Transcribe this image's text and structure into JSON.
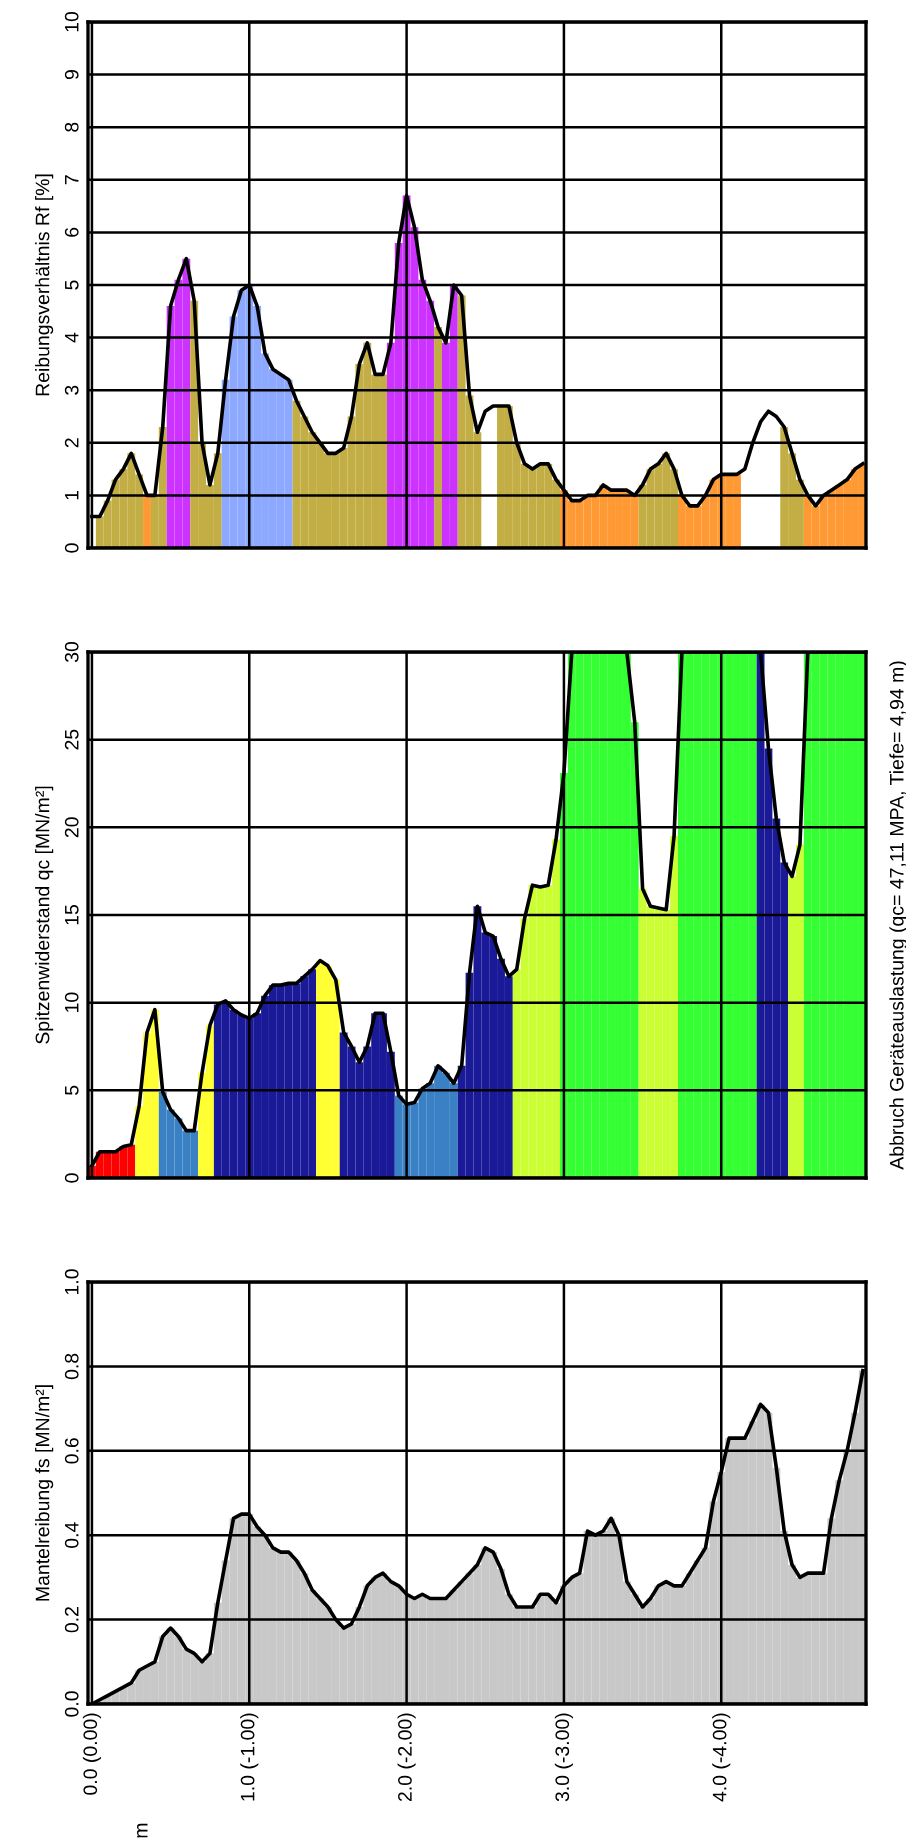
{
  "chart_data": [
    {
      "type": "bar",
      "ylabel": "Reibungsverhältnis Rf [%]",
      "ylim": [
        0,
        10
      ],
      "yticks": [
        0,
        1,
        2,
        3,
        4,
        5,
        6,
        7,
        8,
        9,
        10
      ],
      "grid": true,
      "tick_labels": "y",
      "categories": [
        null,
        null,
        null,
        null,
        null,
        null,
        null,
        null,
        null,
        null,
        null,
        null,
        null,
        null,
        null,
        null,
        null,
        null,
        null,
        null,
        null,
        null,
        null,
        null,
        null,
        null,
        null,
        null,
        null,
        null,
        null,
        null,
        null,
        null,
        null,
        null,
        null,
        null,
        null,
        null,
        null,
        null,
        null,
        null,
        null,
        null,
        null,
        null,
        null,
        null,
        null,
        null,
        null,
        null,
        null,
        null,
        null,
        null,
        null,
        null,
        null,
        null,
        null,
        null,
        null,
        null,
        null,
        null,
        null,
        null,
        null,
        null,
        null,
        null,
        null,
        null,
        null,
        null,
        null,
        null,
        null,
        null,
        null,
        null,
        null,
        null,
        null,
        null,
        null,
        null,
        null,
        null,
        null,
        null,
        null,
        null,
        null,
        null,
        null
      ],
      "series": [
        {
          "values": [
            null,
            0.6,
            0.9,
            1.3,
            1.5,
            1.8,
            1.4,
            1.0,
            1.0,
            2.3,
            4.6,
            5.1,
            5.5,
            4.7,
            2.0,
            1.2,
            1.8,
            3.2,
            4.4,
            4.9,
            5.0,
            4.6,
            3.7,
            3.4,
            3.3,
            3.2,
            2.8,
            2.5,
            2.2,
            2.0,
            1.8,
            1.8,
            1.9,
            2.5,
            3.5,
            3.9,
            3.3,
            3.3,
            3.9,
            5.8,
            6.7,
            6.1,
            5.1,
            4.7,
            4.2,
            3.9,
            5.0,
            4.8,
            2.9,
            2.2,
            null,
            null,
            2.7,
            2.7,
            2.0,
            1.6,
            1.5,
            1.6,
            1.6,
            1.3,
            1.1,
            0.9,
            0.9,
            1.0,
            1.0,
            1.2,
            1.1,
            1.1,
            1.1,
            1.0,
            1.2,
            1.5,
            1.6,
            1.8,
            1.5,
            1.0,
            0.8,
            0.8,
            1.0,
            1.3,
            1.4,
            1.4,
            1.4,
            null,
            null,
            null,
            null,
            null,
            2.3,
            1.8,
            1.3,
            1.0,
            0.8,
            1.0,
            1.1,
            1.2,
            1.3,
            1.5,
            1.6
          ],
          "colors": [
            "#ffffff",
            "#c2ae45",
            "#c2ae45",
            "#c2ae45",
            "#c2ae45",
            "#c2ae45",
            "#c2ae45",
            "#ff9933",
            "#c2ae45",
            "#c2ae45",
            "#cc33ff",
            "#cc33ff",
            "#cc33ff",
            "#c2ae45",
            "#c2ae45",
            "#c2ae45",
            "#c2ae45",
            "#8ca8ff",
            "#8ca8ff",
            "#8ca8ff",
            "#8ca8ff",
            "#8ca8ff",
            "#8ca8ff",
            "#8ca8ff",
            "#8ca8ff",
            "#8ca8ff",
            "#c2ae45",
            "#c2ae45",
            "#c2ae45",
            "#c2ae45",
            "#c2ae45",
            "#c2ae45",
            "#c2ae45",
            "#c2ae45",
            "#c2ae45",
            "#c2ae45",
            "#c2ae45",
            "#c2ae45",
            "#cc33ff",
            "#cc33ff",
            "#cc33ff",
            "#cc33ff",
            "#cc33ff",
            "#cc33ff",
            "#c2ae45",
            "#cc33ff",
            "#cc33ff",
            "#c2ae45",
            "#c2ae45",
            "#c2ae45",
            "#ffffff",
            "#ffffff",
            "#c2ae45",
            "#c2ae45",
            "#c2ae45",
            "#c2ae45",
            "#c2ae45",
            "#c2ae45",
            "#c2ae45",
            "#c2ae45",
            "#ff9933",
            "#ff9933",
            "#ff9933",
            "#ff9933",
            "#ff9933",
            "#ff9933",
            "#ff9933",
            "#ff9933",
            "#ff9933",
            "#ff9933",
            "#c2ae45",
            "#c2ae45",
            "#c2ae45",
            "#c2ae45",
            "#c2ae45",
            "#ff9933",
            "#ff9933",
            "#ff9933",
            "#ff9933",
            "#ff9933",
            "#ff9933",
            "#ff9933",
            "#ff9933",
            "#ffffff",
            "#ffffff",
            "#ffffff",
            "#ffffff",
            "#ffffff",
            "#c2ae45",
            "#c2ae45",
            "#c2ae45",
            "#ff9933",
            "#ff9933",
            "#ff9933",
            "#ff9933",
            "#ff9933",
            "#ff9933",
            "#ff9933",
            "#ff9933"
          ]
        },
        {
          "type": "line",
          "color": "#000000",
          "values": [
            0.6,
            0.6,
            0.9,
            1.3,
            1.5,
            1.8,
            1.4,
            1.0,
            1.0,
            2.3,
            4.6,
            5.1,
            5.5,
            4.7,
            2.0,
            1.2,
            1.8,
            3.2,
            4.4,
            4.9,
            5.0,
            4.6,
            3.7,
            3.4,
            3.3,
            3.2,
            2.8,
            2.5,
            2.2,
            2.0,
            1.8,
            1.8,
            1.9,
            2.5,
            3.5,
            3.9,
            3.3,
            3.3,
            3.9,
            5.8,
            6.7,
            6.1,
            5.1,
            4.7,
            4.2,
            3.9,
            5.0,
            4.8,
            2.9,
            2.2,
            2.6,
            2.7,
            2.7,
            2.7,
            2.0,
            1.6,
            1.5,
            1.6,
            1.6,
            1.3,
            1.1,
            0.9,
            0.9,
            1.0,
            1.0,
            1.2,
            1.1,
            1.1,
            1.1,
            1.0,
            1.2,
            1.5,
            1.6,
            1.8,
            1.5,
            1.0,
            0.8,
            0.8,
            1.0,
            1.3,
            1.4,
            1.4,
            1.4,
            1.5,
            2.0,
            2.4,
            2.6,
            2.5,
            2.3,
            1.8,
            1.3,
            1.0,
            0.8,
            1.0,
            1.1,
            1.2,
            1.3,
            1.5,
            1.6
          ]
        }
      ]
    },
    {
      "type": "bar",
      "ylabel": "Spitzenwiderstand qc [MN/m²]",
      "ylim": [
        0,
        30
      ],
      "yticks": [
        0,
        5,
        10,
        15,
        20,
        25,
        30
      ],
      "grid": true,
      "tick_labels": "y",
      "annotations": [
        "Abbruch Geräteauslastung (qc= 47,11 MPA, Tiefe= 4,94 m)"
      ],
      "categories": [
        null,
        null,
        null,
        null,
        null,
        null,
        null,
        null,
        null,
        null,
        null,
        null,
        null,
        null,
        null,
        null,
        null,
        null,
        null,
        null,
        null,
        null,
        null,
        null,
        null,
        null,
        null,
        null,
        null,
        null,
        null,
        null,
        null,
        null,
        null,
        null,
        null,
        null,
        null,
        null,
        null,
        null,
        null,
        null,
        null,
        null,
        null,
        null,
        null,
        null,
        null,
        null,
        null,
        null,
        null,
        null,
        null,
        null,
        null,
        null,
        null,
        null,
        null,
        null,
        null,
        null,
        null,
        null,
        null,
        null,
        null,
        null,
        null,
        null,
        null,
        null,
        null,
        null,
        null,
        null,
        null,
        null,
        null,
        null,
        null,
        null,
        null,
        null,
        null,
        null,
        null,
        null,
        null,
        null,
        null,
        null,
        null,
        null,
        null
      ],
      "series": [
        {
          "values": [
            0.7,
            1.5,
            1.5,
            1.5,
            1.8,
            1.9,
            4.1,
            8.3,
            9.6,
            4.9,
            3.9,
            3.4,
            2.7,
            2.7,
            6.0,
            8.7,
            9.9,
            10.1,
            9.6,
            9.3,
            9.1,
            9.4,
            10.4,
            11.0,
            11.0,
            11.1,
            11.1,
            11.5,
            11.9,
            12.4,
            12.1,
            11.3,
            8.3,
            7.5,
            6.6,
            7.5,
            9.4,
            9.4,
            7.2,
            4.7,
            4.2,
            4.3,
            5.1,
            5.4,
            6.4,
            6.0,
            5.4,
            6.4,
            11.7,
            15.5,
            14.0,
            13.8,
            12.5,
            11.5,
            11.9,
            14.8,
            16.7,
            16.6,
            16.7,
            19.3,
            23.1,
            30,
            30,
            30,
            30,
            30,
            30,
            30,
            30,
            26,
            16.5,
            15.5,
            15.4,
            15.3,
            19.5,
            30,
            30,
            30,
            30,
            30,
            30,
            30,
            30,
            30,
            30,
            30,
            24.5,
            20.5,
            18.0,
            17.2,
            19.0,
            30,
            30,
            30,
            30,
            30,
            30,
            30,
            30
          ],
          "colors": [
            "#ff0000",
            "#ff0000",
            "#ff0000",
            "#ff0000",
            "#ff0000",
            "#ff0000",
            "#ffff33",
            "#ffff33",
            "#ffff33",
            "#3a80c4",
            "#3a80c4",
            "#3a80c4",
            "#3a80c4",
            "#3a80c4",
            "#ffff33",
            "#ffff33",
            "#1a1a99",
            "#1a1a99",
            "#1a1a99",
            "#1a1a99",
            "#1a1a99",
            "#1a1a99",
            "#1a1a99",
            "#1a1a99",
            "#1a1a99",
            "#1a1a99",
            "#1a1a99",
            "#1a1a99",
            "#1a1a99",
            "#ffff33",
            "#ffff33",
            "#ffff33",
            "#1a1a99",
            "#1a1a99",
            "#1a1a99",
            "#1a1a99",
            "#1a1a99",
            "#1a1a99",
            "#1a1a99",
            "#3a80c4",
            "#3a80c4",
            "#3a80c4",
            "#3a80c4",
            "#3a80c4",
            "#3a80c4",
            "#3a80c4",
            "#3a80c4",
            "#1a1a99",
            "#1a1a99",
            "#1a1a99",
            "#1a1a99",
            "#1a1a99",
            "#1a1a99",
            "#1a1a99",
            "#ccff33",
            "#ccff33",
            "#ccff33",
            "#ccff33",
            "#ccff33",
            "#ccff33",
            "#33ff33",
            "#33ff33",
            "#33ff33",
            "#33ff33",
            "#33ff33",
            "#33ff33",
            "#33ff33",
            "#33ff33",
            "#33ff33",
            "#33ff33",
            "#ccff33",
            "#ccff33",
            "#ccff33",
            "#ccff33",
            "#ccff33",
            "#33ff33",
            "#33ff33",
            "#33ff33",
            "#33ff33",
            "#33ff33",
            "#33ff33",
            "#33ff33",
            "#33ff33",
            "#33ff33",
            "#33ff33",
            "#1a1a99",
            "#1a1a99",
            "#1a1a99",
            "#1a1a99",
            "#ccff33",
            "#ccff33",
            "#33ff33",
            "#33ff33",
            "#33ff33",
            "#33ff33",
            "#33ff33",
            "#33ff33",
            "#33ff33",
            "#33ff33"
          ]
        },
        {
          "type": "line",
          "color": "#000000",
          "values": [
            0.7,
            1.5,
            1.5,
            1.5,
            1.8,
            1.9,
            4.1,
            8.3,
            9.6,
            4.9,
            3.9,
            3.4,
            2.7,
            2.7,
            6.0,
            8.7,
            9.9,
            10.1,
            9.6,
            9.3,
            9.1,
            9.4,
            10.4,
            11.0,
            11.0,
            11.1,
            11.1,
            11.5,
            11.9,
            12.4,
            12.1,
            11.3,
            8.3,
            7.5,
            6.6,
            7.5,
            9.4,
            9.4,
            7.2,
            4.7,
            4.2,
            4.3,
            5.1,
            5.4,
            6.4,
            6.0,
            5.4,
            6.4,
            11.7,
            15.5,
            14.0,
            13.8,
            12.5,
            11.5,
            11.9,
            14.8,
            16.7,
            16.6,
            16.7,
            19.3,
            23.1,
            30,
            30,
            30,
            30,
            30,
            30,
            30,
            30,
            26,
            16.5,
            15.5,
            15.4,
            15.3,
            19.5,
            30,
            30,
            30,
            30,
            30,
            30,
            30,
            30,
            30,
            30,
            30,
            24.5,
            20.5,
            18.0,
            17.2,
            19.0,
            30,
            30,
            30,
            30,
            30,
            30,
            30,
            30
          ]
        }
      ]
    },
    {
      "type": "bar",
      "ylabel": "Mantelreibung fs [MN/m²]",
      "annotations": [
        "m"
      ],
      "ylim": [
        0,
        1.0
      ],
      "yticks": [
        {
          "value": 0,
          "label": "0.0"
        },
        {
          "value": 0.2,
          "label": "0.2"
        },
        {
          "value": 0.4,
          "label": "0.4"
        },
        {
          "value": 0.6,
          "label": "0.6"
        },
        {
          "value": 0.8,
          "label": "0.8"
        },
        {
          "value": 1.0,
          "label": "1.0"
        }
      ],
      "grid": true,
      "categories": [
        "0.0 (0.00)",
        null,
        null,
        null,
        null,
        null,
        null,
        null,
        null,
        null,
        null,
        null,
        null,
        null,
        null,
        null,
        null,
        null,
        null,
        null,
        "1.0 (-1.00)",
        null,
        null,
        null,
        null,
        null,
        null,
        null,
        null,
        null,
        null,
        null,
        null,
        null,
        null,
        null,
        null,
        null,
        null,
        null,
        "2.0 (-2.00)",
        null,
        null,
        null,
        null,
        null,
        null,
        null,
        null,
        null,
        null,
        null,
        null,
        null,
        null,
        null,
        null,
        null,
        null,
        null,
        "3.0 (-3.00)",
        null,
        null,
        null,
        null,
        null,
        null,
        null,
        null,
        null,
        null,
        null,
        null,
        null,
        null,
        null,
        null,
        null,
        null,
        null,
        "4.0 (-4.00)",
        null,
        null,
        null,
        null,
        null,
        null,
        null,
        null,
        null,
        null,
        null,
        null,
        null,
        null,
        null,
        null,
        null,
        null
      ],
      "series": [
        {
          "color": "#c8c8c8",
          "values": [
            0.0,
            0.01,
            0.02,
            0.03,
            0.04,
            0.05,
            0.08,
            0.09,
            0.1,
            0.16,
            0.18,
            0.16,
            0.13,
            0.12,
            0.1,
            0.12,
            0.24,
            0.34,
            0.44,
            0.45,
            0.45,
            0.42,
            0.4,
            0.37,
            0.36,
            0.36,
            0.34,
            0.31,
            0.27,
            0.25,
            0.23,
            0.2,
            0.18,
            0.19,
            0.23,
            0.28,
            0.3,
            0.31,
            0.29,
            0.28,
            0.26,
            0.25,
            0.26,
            0.25,
            0.25,
            0.25,
            0.27,
            0.29,
            0.31,
            0.33,
            0.37,
            0.36,
            0.32,
            0.26,
            0.23,
            0.23,
            0.23,
            0.26,
            0.26,
            0.24,
            0.28,
            0.3,
            0.31,
            0.41,
            0.4,
            0.41,
            0.44,
            0.4,
            0.29,
            0.26,
            0.23,
            0.25,
            0.28,
            0.29,
            0.28,
            0.28,
            0.31,
            0.34,
            0.37,
            0.48,
            0.55,
            0.63,
            0.63,
            0.63,
            0.67,
            0.71,
            0.69,
            0.56,
            0.41,
            0.33,
            0.3,
            0.31,
            0.31,
            0.31,
            0.44,
            0.53,
            0.6,
            0.69,
            0.79
          ]
        },
        {
          "type": "line",
          "color": "#000000",
          "values": [
            0.0,
            0.01,
            0.02,
            0.03,
            0.04,
            0.05,
            0.08,
            0.09,
            0.1,
            0.16,
            0.18,
            0.16,
            0.13,
            0.12,
            0.1,
            0.12,
            0.24,
            0.34,
            0.44,
            0.45,
            0.45,
            0.42,
            0.4,
            0.37,
            0.36,
            0.36,
            0.34,
            0.31,
            0.27,
            0.25,
            0.23,
            0.2,
            0.18,
            0.19,
            0.23,
            0.28,
            0.3,
            0.31,
            0.29,
            0.28,
            0.26,
            0.25,
            0.26,
            0.25,
            0.25,
            0.25,
            0.27,
            0.29,
            0.31,
            0.33,
            0.37,
            0.36,
            0.32,
            0.26,
            0.23,
            0.23,
            0.23,
            0.26,
            0.26,
            0.24,
            0.28,
            0.3,
            0.31,
            0.41,
            0.4,
            0.41,
            0.44,
            0.4,
            0.29,
            0.26,
            0.23,
            0.25,
            0.28,
            0.29,
            0.28,
            0.28,
            0.31,
            0.34,
            0.37,
            0.48,
            0.55,
            0.63,
            0.63,
            0.63,
            0.67,
            0.71,
            0.69,
            0.56,
            0.41,
            0.33,
            0.3,
            0.31,
            0.31,
            0.31,
            0.44,
            0.53,
            0.6,
            0.69,
            0.79
          ]
        }
      ]
    }
  ]
}
